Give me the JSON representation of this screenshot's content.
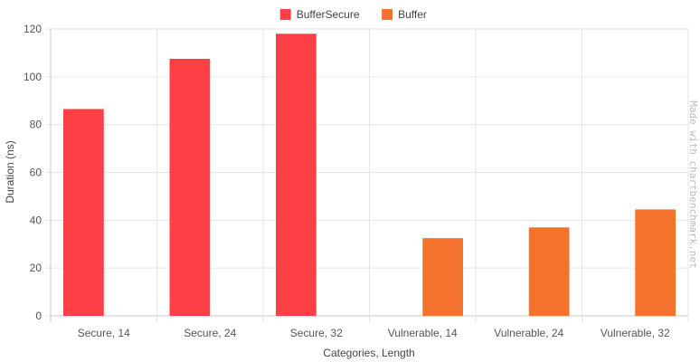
{
  "chart_data": {
    "type": "bar",
    "categories": [
      "Secure, 14",
      "Secure, 24",
      "Secure, 32",
      "Vulnerable, 14",
      "Vulnerable, 24",
      "Vulnerable, 32"
    ],
    "series": [
      {
        "name": "BufferSecure",
        "color": "#fd3f46",
        "values": [
          86.5,
          107.5,
          118,
          null,
          null,
          null
        ]
      },
      {
        "name": "Buffer",
        "color": "#f4722d",
        "values": [
          null,
          null,
          null,
          32.5,
          37,
          44.5
        ]
      }
    ],
    "xlabel": "Categories, Length",
    "ylabel": "Duration (ns)",
    "ylim": [
      0,
      120
    ],
    "yticks": [
      0,
      20,
      40,
      60,
      80,
      100,
      120
    ],
    "grid": true,
    "legend_position": "top-center"
  },
  "watermark": "Made with chartbenchmark.net"
}
